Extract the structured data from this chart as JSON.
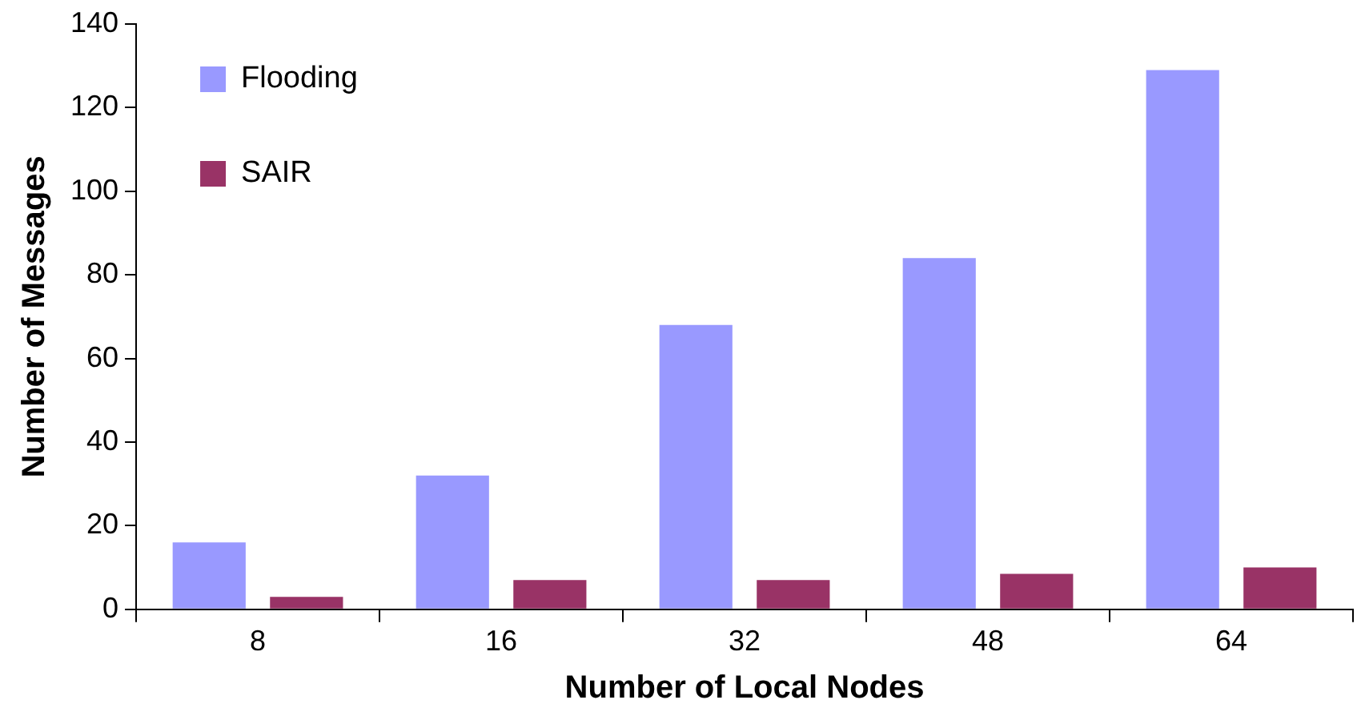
{
  "chart_data": {
    "type": "bar",
    "xlabel": "Number of Local Nodes",
    "ylabel": "Number of Messages",
    "categories": [
      "8",
      "16",
      "32",
      "48",
      "64"
    ],
    "series": [
      {
        "name": "Flooding",
        "color": "#9999ff",
        "values": [
          16,
          32,
          68,
          84,
          129
        ]
      },
      {
        "name": "SAIR",
        "color": "#993366",
        "values": [
          3,
          7,
          7,
          8.5,
          10
        ]
      }
    ],
    "ylim": [
      0,
      140
    ],
    "yticks": [
      0,
      20,
      40,
      60,
      80,
      100,
      120,
      140
    ],
    "legend": "top left"
  }
}
